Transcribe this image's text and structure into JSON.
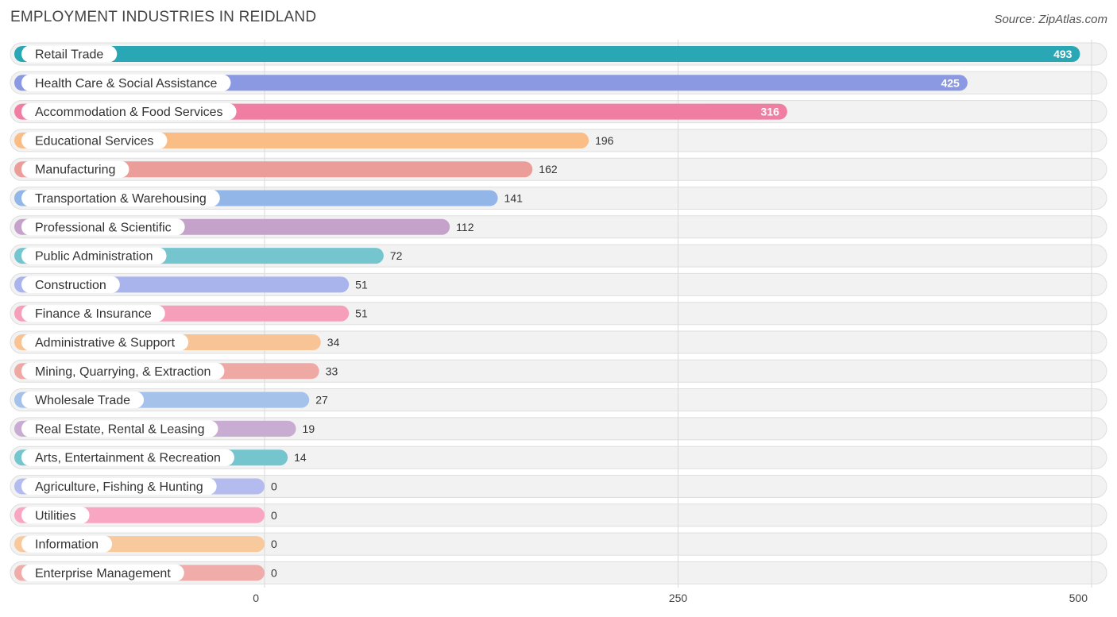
{
  "chart_data": {
    "type": "bar",
    "orientation": "horizontal",
    "title": "EMPLOYMENT INDUSTRIES IN REIDLAND",
    "source": "Source: ZipAtlas.com",
    "xlim": [
      0,
      500
    ],
    "ticks": [
      0,
      250,
      500
    ],
    "tick_labels": [
      "0",
      "250",
      "500"
    ],
    "categories": [
      "Retail Trade",
      "Health Care & Social Assistance",
      "Accommodation & Food Services",
      "Educational Services",
      "Manufacturing",
      "Transportation & Warehousing",
      "Professional & Scientific",
      "Public Administration",
      "Construction",
      "Finance & Insurance",
      "Administrative & Support",
      "Mining, Quarrying, & Extraction",
      "Wholesale Trade",
      "Real Estate, Rental & Leasing",
      "Arts, Entertainment & Recreation",
      "Agriculture, Fishing & Hunting",
      "Utilities",
      "Information",
      "Enterprise Management"
    ],
    "values": [
      493,
      425,
      316,
      196,
      162,
      141,
      112,
      72,
      51,
      51,
      34,
      33,
      27,
      19,
      14,
      0,
      0,
      0,
      0
    ],
    "colors": [
      "#2aa7b5",
      "#8b99e2",
      "#f07ea3",
      "#f9bd85",
      "#eb9d9a",
      "#93b6e8",
      "#c5a2ca",
      "#75c5cf",
      "#aab4ec",
      "#f59fbb",
      "#f9c495",
      "#efa9a5",
      "#a4c2ea",
      "#c8acd2",
      "#75c5cf",
      "#b4bcef",
      "#f8a6c1",
      "#f9c99e",
      "#efaca9"
    ]
  }
}
